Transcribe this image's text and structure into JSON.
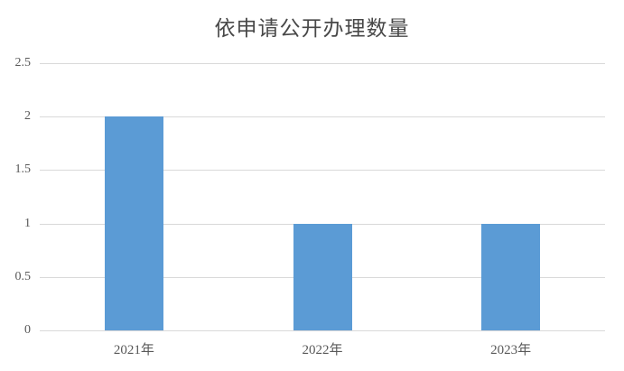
{
  "chart_data": {
    "type": "bar",
    "title": "依申请公开办理数量",
    "categories": [
      "2021年",
      "2022年",
      "2023年"
    ],
    "values": [
      2,
      1,
      1
    ],
    "series": [
      {
        "name": "依申请公开办理数量",
        "values": [
          2,
          1,
          1
        ]
      }
    ],
    "xlabel": "",
    "ylabel": "",
    "ylim": [
      0,
      2.5
    ],
    "ytick_labels": [
      "0",
      "0.5",
      "1",
      "1.5",
      "2",
      "2.5"
    ],
    "ytick_values": [
      0,
      0.5,
      1,
      1.5,
      2,
      2.5
    ],
    "grid": "horizontal",
    "legend": "none",
    "bar_color": "#5b9bd5",
    "gridline_color": "#d9d9d9",
    "axis_line_color": "#d0d0d0",
    "title_color": "#484848",
    "tick_label_color": "#595959",
    "background_color": "#ffffff"
  }
}
